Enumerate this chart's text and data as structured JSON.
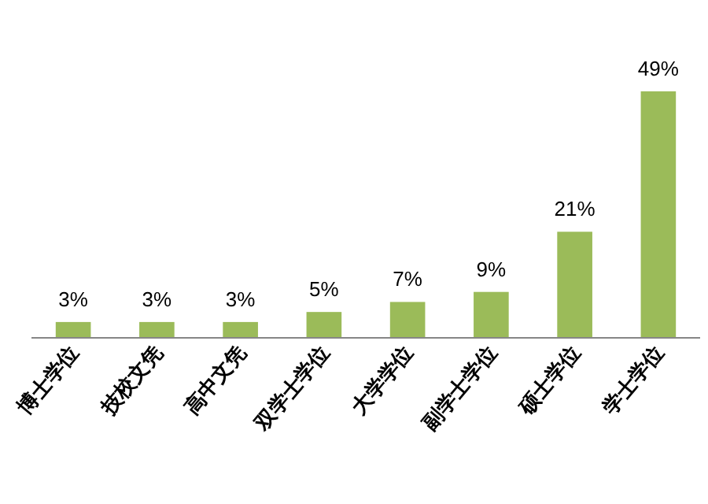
{
  "chart_data": {
    "type": "bar",
    "categories": [
      "博士学位",
      "技校文凭",
      "高中文凭",
      "双学士学位",
      "大学学位",
      "副学士学位",
      "硕士学位",
      "学士学位"
    ],
    "values": [
      3,
      3,
      3,
      5,
      7,
      9,
      21,
      49
    ],
    "color": "#9bbb59",
    "value_labels": [
      "3%",
      "3%",
      "3%",
      "5%",
      "7%",
      "9%",
      "21%",
      "49%"
    ]
  }
}
